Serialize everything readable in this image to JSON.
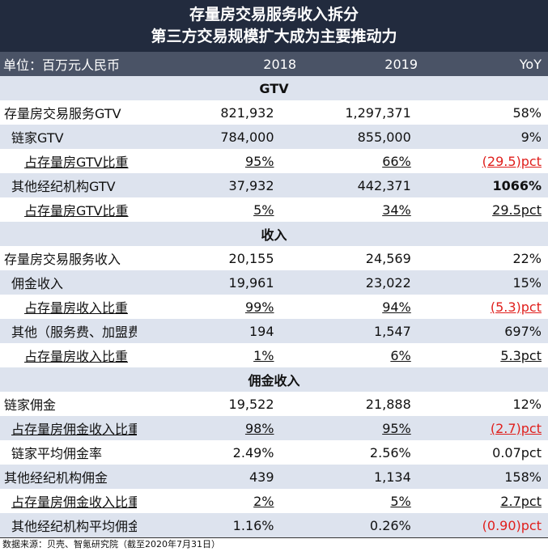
{
  "title_line1": "存量房交易服务收入拆分",
  "title_line2": "第三方交易规模扩大成为主要推动力",
  "header": {
    "unit": "单位：百万元人民币",
    "y2018": "2018",
    "y2019": "2019",
    "yoy": "YoY"
  },
  "rows": [
    {
      "type": "section",
      "label": "GTV"
    },
    {
      "label": "存量房交易服务GTV",
      "indent": 0,
      "v2018": "821,932",
      "v2019": "1,297,371",
      "yoy": "58%"
    },
    {
      "label": "链家GTV",
      "indent": 1,
      "v2018": "784,000",
      "v2019": "855,000",
      "yoy": "9%"
    },
    {
      "label": "占存量房GTV比重",
      "indent": 2,
      "v2018": "95%",
      "v2019": "66%",
      "yoy": "(29.5)pct",
      "yoy_red": true
    },
    {
      "label": "其他经纪机构GTV",
      "indent": 1,
      "v2018": "37,932",
      "v2019": "442,371",
      "yoy": "1066%",
      "yoy_bold": true
    },
    {
      "label": "占存量房GTV比重",
      "indent": 2,
      "v2018": "5%",
      "v2019": "34%",
      "yoy": "29.5pct"
    },
    {
      "type": "section",
      "label": "收入"
    },
    {
      "label": "存量房交易服务收入",
      "indent": 0,
      "v2018": "20,155",
      "v2019": "24,569",
      "yoy": "22%"
    },
    {
      "label": "佣金收入",
      "indent": 1,
      "v2018": "19,961",
      "v2019": "23,022",
      "yoy": "15%"
    },
    {
      "label": "占存量房收入比重",
      "indent": 2,
      "v2018": "99%",
      "v2019": "94%",
      "yoy": "(5.3)pct",
      "yoy_red": true
    },
    {
      "label": "其他（服务费、加盟费等）",
      "indent": 1,
      "v2018": "194",
      "v2019": "1,547",
      "yoy": "697%"
    },
    {
      "label": "占存量房收入比重",
      "indent": 2,
      "v2018": "1%",
      "v2019": "6%",
      "yoy": "5.3pct"
    },
    {
      "type": "section",
      "label": "佣金收入"
    },
    {
      "label": "链家佣金",
      "indent": 0,
      "v2018": "19,522",
      "v2019": "21,888",
      "yoy": "12%"
    },
    {
      "label": "占存量房佣金收入比重",
      "indent": 1,
      "v2018": "98%",
      "v2019": "95%",
      "yoy": "(2.7)pct",
      "yoy_red": true,
      "underline": true
    },
    {
      "label": "链家平均佣金率",
      "indent": 1,
      "v2018": "2.49%",
      "v2019": "2.56%",
      "yoy": "0.07pct"
    },
    {
      "label": "其他经纪机构佣金",
      "indent": 0,
      "v2018": "439",
      "v2019": "1,134",
      "yoy": "158%"
    },
    {
      "label": "占存量房佣金收入比重",
      "indent": 1,
      "v2018": "2%",
      "v2019": "5%",
      "yoy": "2.7pct",
      "underline": true
    },
    {
      "label": "其他经纪机构平均佣金率",
      "indent": 1,
      "v2018": "1.16%",
      "v2019": "0.26%",
      "yoy": "(0.90)pct",
      "yoy_red": true
    }
  ],
  "footer": "数据来源：贝壳、智氪研究院（截至2020年7月31日）"
}
